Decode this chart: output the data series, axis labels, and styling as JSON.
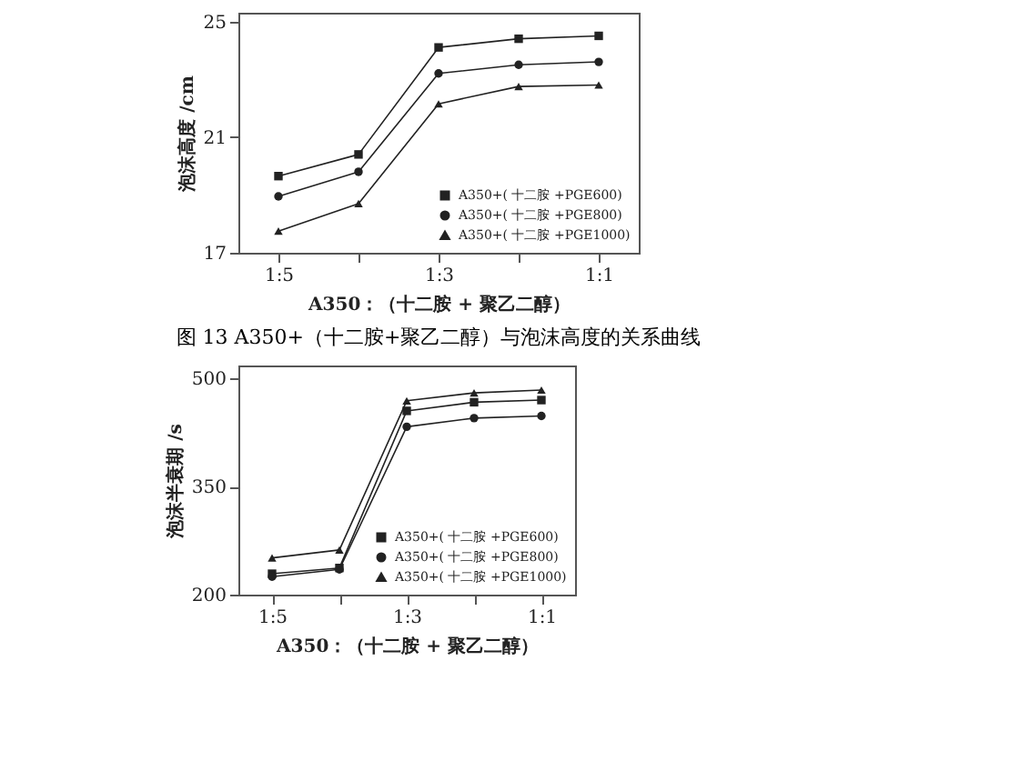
{
  "chart_data": [
    {
      "type": "line",
      "title": "图 13 A350+（十二胺+聚乙二醇）与泡沫高度的关系曲线",
      "xlabel": "A350：（十二胺 + 聚乙二醇）",
      "ylabel": "泡沫高度 /cm",
      "categories": [
        "1:5",
        null,
        "1:3",
        null,
        "1:1"
      ],
      "ylim": [
        17,
        25.3
      ],
      "yticks": [
        17,
        21,
        25
      ],
      "grid": false,
      "legend": "bottom right",
      "series": [
        {
          "name": "A350+( 十二胺 +PGE600)",
          "color": "#222222",
          "marker": "square",
          "values": [
            19.65,
            20.4,
            24.1,
            24.4,
            24.5
          ]
        },
        {
          "name": "A350+( 十二胺 +PGE800)",
          "color": "#222222",
          "marker": "circle",
          "values": [
            18.95,
            19.8,
            23.2,
            23.5,
            23.6
          ]
        },
        {
          "name": "A350+( 十二胺 +PGE1000)",
          "color": "#222222",
          "marker": "triangle",
          "values": [
            17.75,
            18.7,
            22.15,
            22.75,
            22.8
          ]
        }
      ]
    },
    {
      "type": "line",
      "xlabel": "A350：（十二胺 + 聚乙二醇）",
      "ylabel": "泡沫半衰期 /s",
      "categories": [
        "1:5",
        null,
        "1:3",
        null,
        "1:1"
      ],
      "ylim": [
        200,
        518
      ],
      "yticks": [
        200,
        350,
        500
      ],
      "grid": false,
      "legend": "bottom right",
      "series": [
        {
          "name": "A350+( 十二胺 +PGE600)",
          "color": "#222222",
          "marker": "square",
          "values": [
            229,
            237,
            455,
            467,
            470
          ]
        },
        {
          "name": "A350+( 十二胺 +PGE800)",
          "color": "#222222",
          "marker": "circle",
          "values": [
            225,
            235,
            433,
            445,
            448
          ]
        },
        {
          "name": "A350+( 十二胺 +PGE1000)",
          "color": "#222222",
          "marker": "triangle",
          "values": [
            251,
            262,
            469,
            480,
            484
          ]
        }
      ]
    }
  ]
}
